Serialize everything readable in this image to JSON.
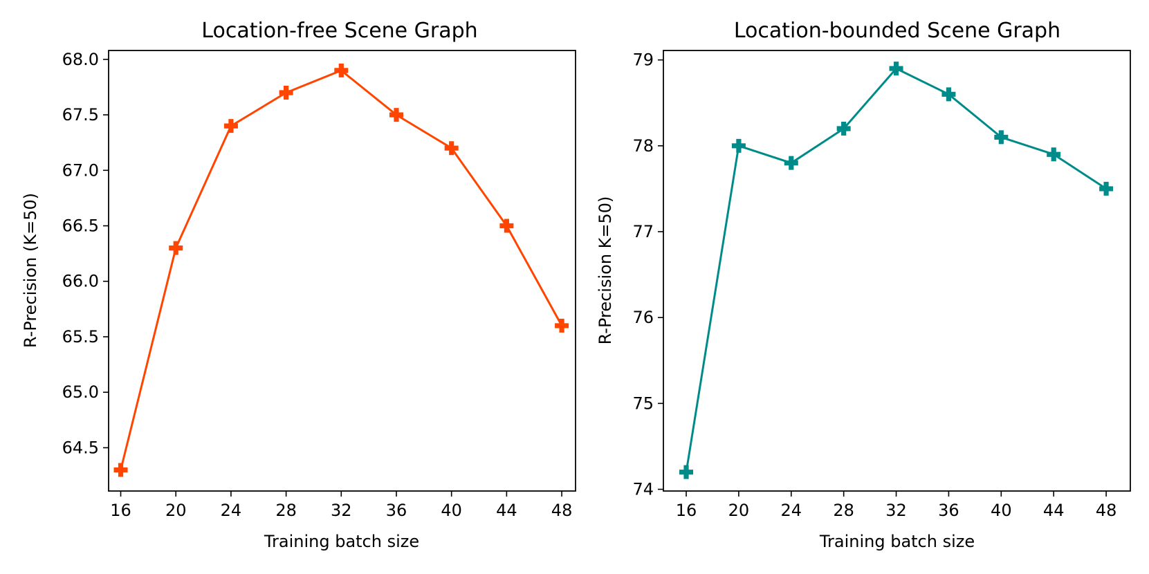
{
  "chart_data": [
    {
      "type": "line",
      "title": "Location-free Scene Graph",
      "xlabel": "Training batch size",
      "ylabel": "R-Precision (K=50)",
      "x": [
        16,
        20,
        24,
        28,
        32,
        36,
        40,
        44,
        48
      ],
      "x_ticks": [
        "16",
        "20",
        "24",
        "28",
        "32",
        "36",
        "40",
        "44",
        "48"
      ],
      "y_ticks": [
        "64.5",
        "65.0",
        "65.5",
        "66.0",
        "66.5",
        "67.0",
        "67.5",
        "68.0"
      ],
      "xlim": [
        15.12,
        49.0
      ],
      "ylim": [
        64.11,
        68.08
      ],
      "grid": false,
      "series": [
        {
          "values": [
            64.3,
            66.3,
            67.4,
            67.7,
            67.9,
            67.5,
            67.2,
            66.5,
            65.6
          ],
          "color": "#ff4500",
          "marker": "plus-filled"
        }
      ]
    },
    {
      "type": "line",
      "title": "Location-bounded Scene Graph",
      "xlabel": "Training batch size",
      "ylabel": "R-Precision K=50)",
      "x": [
        16,
        20,
        24,
        28,
        32,
        36,
        40,
        44,
        48
      ],
      "x_ticks": [
        "16",
        "20",
        "24",
        "28",
        "32",
        "36",
        "40",
        "44",
        "48"
      ],
      "y_ticks": [
        "74",
        "75",
        "76",
        "77",
        "78",
        "79"
      ],
      "xlim": [
        14.26,
        49.84
      ],
      "ylim": [
        73.98,
        79.11
      ],
      "grid": false,
      "series": [
        {
          "values": [
            74.2,
            78.0,
            77.8,
            78.2,
            78.9,
            78.6,
            78.1,
            77.9,
            77.5
          ],
          "color": "#008b8b",
          "marker": "plus-filled"
        }
      ]
    }
  ]
}
